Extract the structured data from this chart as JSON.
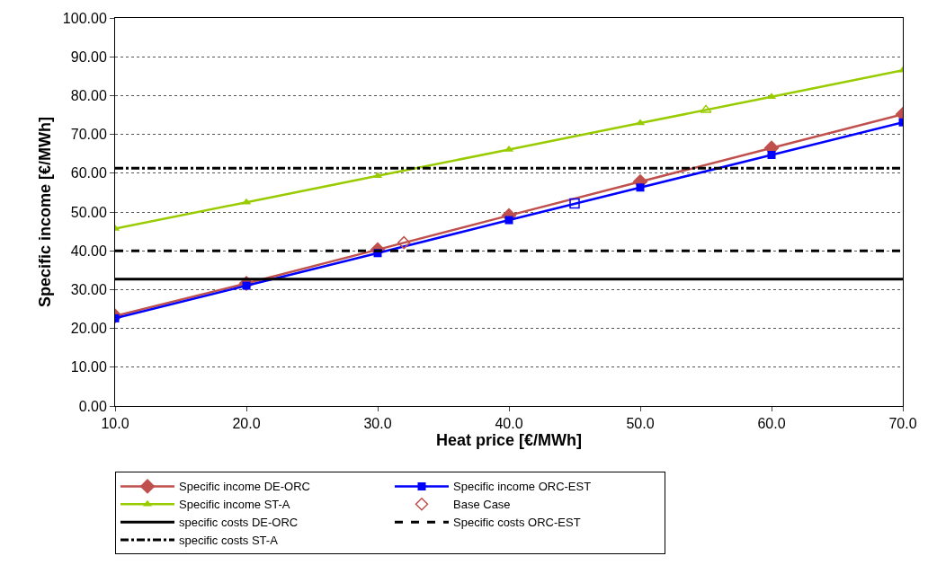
{
  "chart_data": {
    "type": "line",
    "xlabel": "Heat price [€/MWh]",
    "ylabel": "Specific income [€/MWh]",
    "x": [
      10,
      20,
      30,
      40,
      50,
      60,
      70
    ],
    "series": [
      {
        "name": "Specific income DE-ORC",
        "color": "#c0504d",
        "marker": "diamond",
        "values": [
          23.2,
          31.6,
          40.3,
          49.1,
          57.8,
          66.5,
          75.2
        ]
      },
      {
        "name": "Specific income ORC-EST",
        "color": "#0000ff",
        "marker": "square",
        "values": [
          22.6,
          31.0,
          39.4,
          47.9,
          56.3,
          64.7,
          73.1
        ]
      },
      {
        "name": "Specific income ST-A",
        "color": "#99cc00",
        "marker": "triangle",
        "values": [
          45.7,
          52.5,
          59.3,
          66.1,
          72.9,
          79.7,
          86.5
        ]
      },
      {
        "name": "Base Case",
        "type": "scatter",
        "x": [
          32,
          45,
          55
        ],
        "values": [
          42.1,
          52.2,
          76.3
        ],
        "colors": [
          "#c0504d",
          "#0000ff",
          "#99cc00"
        ]
      }
    ],
    "ref_lines": [
      {
        "axis": "y",
        "value": 32.7,
        "label": "specific costs DE-ORC",
        "color": "#000000",
        "line_style": "solid"
      },
      {
        "axis": "y",
        "value": 40.0,
        "label": "Specific costs ORC-EST",
        "color": "#000000",
        "line_style": "dashed"
      },
      {
        "axis": "y",
        "value": 61.3,
        "label": "specific costs ST-A",
        "color": "#000000",
        "line_style": "dashdot"
      }
    ],
    "xlim": [
      10,
      70
    ],
    "xticks": [
      {
        "value": 10,
        "label": "10.0"
      },
      {
        "value": 20,
        "label": "20.0"
      },
      {
        "value": 30,
        "label": "30.0"
      },
      {
        "value": 40,
        "label": "40.0"
      },
      {
        "value": 50,
        "label": "50.0"
      },
      {
        "value": 60,
        "label": "60.0"
      },
      {
        "value": 70,
        "label": "70.0"
      }
    ],
    "ylim": [
      0,
      100
    ],
    "yticks": [
      {
        "value": 0,
        "label": "0.00"
      },
      {
        "value": 10,
        "label": "10.00"
      },
      {
        "value": 20,
        "label": "20.00"
      },
      {
        "value": 30,
        "label": "30.00"
      },
      {
        "value": 40,
        "label": "40.00"
      },
      {
        "value": 50,
        "label": "50.00"
      },
      {
        "value": 60,
        "label": "60.00"
      },
      {
        "value": 70,
        "label": "70.00"
      },
      {
        "value": 80,
        "label": "80.00"
      },
      {
        "value": 90,
        "label": "90.00"
      },
      {
        "value": 100,
        "label": "100.00"
      }
    ],
    "grid": "y",
    "legend": "bottom",
    "line_style": "solid"
  }
}
